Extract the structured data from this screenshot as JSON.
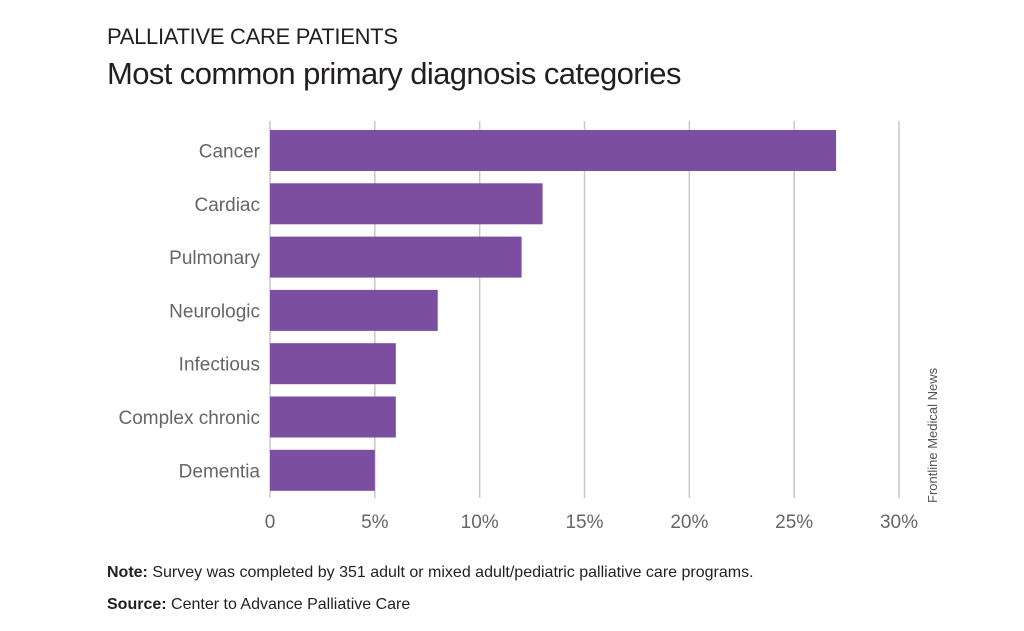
{
  "header": {
    "supertitle": "PALLIATIVE CARE PATIENTS",
    "title": "Most common primary diagnosis categories"
  },
  "credit": "Frontline Medical News",
  "footer": {
    "note_label": "Note:",
    "note_text": " Survey was completed by 351 adult or mixed adult/pediatric palliative care programs.",
    "source_label": "Source:",
    "source_text": " Center to Advance Palliative Care"
  },
  "chart_data": {
    "type": "bar",
    "orientation": "horizontal",
    "categories": [
      "Cancer",
      "Cardiac",
      "Pulmonary",
      "Neurologic",
      "Infectious",
      "Complex chronic",
      "Dementia"
    ],
    "values": [
      27,
      13,
      12,
      8,
      6,
      6,
      5
    ],
    "unit": "%",
    "xlim": [
      0,
      30
    ],
    "ticks": [
      0,
      5,
      10,
      15,
      20,
      25,
      30
    ],
    "tick_labels": [
      "0",
      "5%",
      "10%",
      "15%",
      "20%",
      "25%",
      "30%"
    ],
    "grid": "vertical",
    "bar_color": "#7b4ea0",
    "grid_color": "#c8c8c8",
    "label_color": "#666666"
  }
}
